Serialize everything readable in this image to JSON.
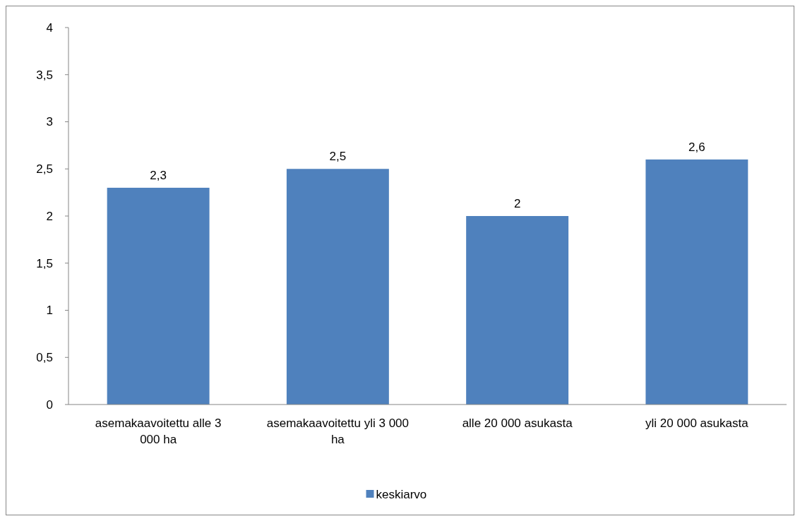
{
  "chart_data": {
    "type": "bar",
    "categories": [
      "asemakaavoitettu alle 3 000 ha",
      "asemakaavoitettu yli 3 000 ha",
      "alle 20 000 asukasta",
      "yli 20 000 asukasta"
    ],
    "series": [
      {
        "name": "keskiarvo",
        "color": "#4f81bd",
        "values": [
          2.3,
          2.5,
          2,
          2.6
        ],
        "value_labels": [
          "2,3",
          "2,5",
          "2",
          "2,6"
        ]
      }
    ],
    "ylim": [
      0,
      4
    ],
    "yticks": [
      0,
      {
        "value": 0.5,
        "label": "0,5"
      },
      1,
      {
        "value": 1.5,
        "label": "1,5"
      },
      2,
      {
        "value": 2.5,
        "label": "2,5"
      },
      3,
      {
        "value": 3.5,
        "label": "3,5"
      },
      4
    ],
    "grid": false,
    "legend": "bottom"
  }
}
